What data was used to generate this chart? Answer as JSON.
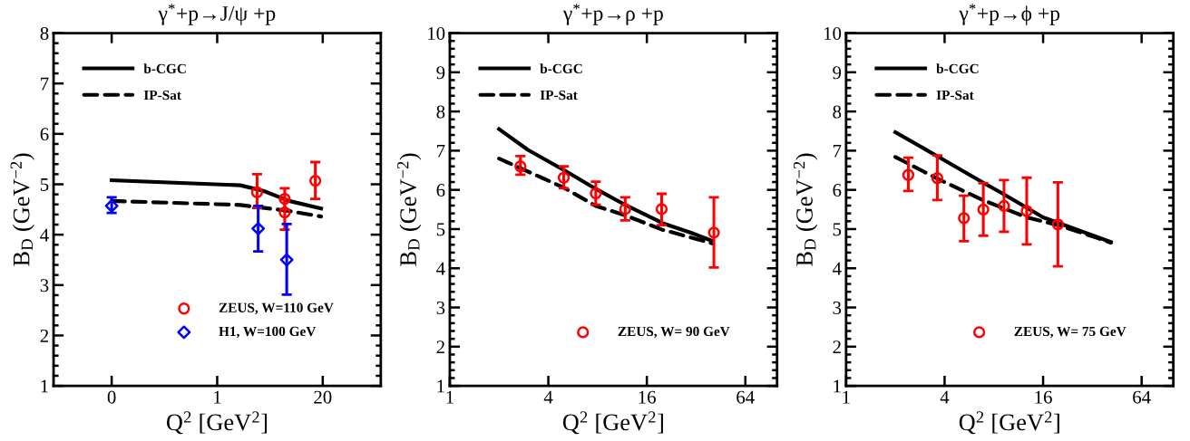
{
  "chart_data": [
    {
      "type": "line",
      "title": "γ$^{*}$+p→J/ψ +p",
      "xlabel": "Q$^{2}$ [GeV$^{2}$]",
      "ylabel": "B$_{D}$ (GeV$^{−2}$)",
      "log": "x",
      "xlim": [
        0.0096,
        104
      ],
      "xticks": [
        {
          "value": 0.05,
          "label": "0"
        },
        1,
        20
      ],
      "ylim": [
        1,
        8
      ],
      "yticks": [
        1,
        2,
        3,
        4,
        5,
        6,
        7,
        8
      ],
      "legend": "top left",
      "grid": false,
      "series": [
        {
          "name": "b-CGC",
          "color": "#000000",
          "line_style": "solid",
          "x": [
            0.05,
            1.93,
            3.7,
            7.7,
            19.1
          ],
          "values": [
            5.08,
            4.98,
            4.87,
            4.67,
            4.52
          ]
        },
        {
          "name": "IP-Sat",
          "color": "#000000",
          "line_style": "dashed",
          "x": [
            0.05,
            1.93,
            7.7,
            19.1
          ],
          "values": [
            4.67,
            4.59,
            4.47,
            4.36
          ]
        },
        {
          "name": "ZEUS, W=110 GeV",
          "type": "scatter",
          "marker": "circle",
          "color": "#ff0000",
          "x": [
            3.1,
            6.8,
            6.8,
            16.2
          ],
          "values": [
            4.84,
            4.71,
            4.44,
            5.07
          ],
          "errors": [
            [
              4.53,
              5.2
            ],
            [
              4.5,
              4.92
            ],
            [
              4.1,
              4.7
            ],
            [
              4.71,
              5.44
            ]
          ]
        },
        {
          "name": "H1, W=100 GeV",
          "type": "scatter",
          "marker": "diamond",
          "color": "#0000ff",
          "x": [
            0.05,
            3.2,
            7.2
          ],
          "values": [
            4.57,
            4.12,
            3.5
          ],
          "errors": [
            [
              4.43,
              4.74
            ],
            [
              3.67,
              4.57
            ],
            [
              2.81,
              4.21
            ]
          ]
        }
      ]
    },
    {
      "type": "line",
      "title": "γ$^{*}$+p→ρ +p",
      "xlabel": "Q$^{2}$ [GeV$^{2}$]",
      "ylabel": "B$_{D}$ (GeV$^{−2}$)",
      "log": "x",
      "xlim": [
        1,
        100
      ],
      "xticks": [
        1,
        4,
        16,
        64
      ],
      "ylim": [
        1,
        10
      ],
      "yticks": [
        1,
        2,
        3,
        4,
        5,
        6,
        7,
        8,
        9,
        10
      ],
      "legend": "top left",
      "grid": false,
      "series": [
        {
          "name": "b-CGC",
          "color": "#000000",
          "line_style": "solid",
          "x": [
            2.0,
            3.0,
            5.0,
            8.0,
            12,
            20,
            30,
            40
          ],
          "values": [
            7.55,
            7.02,
            6.5,
            6.0,
            5.6,
            5.15,
            4.9,
            4.7
          ]
        },
        {
          "name": "IP-Sat",
          "color": "#000000",
          "line_style": "dashed",
          "x": [
            2.0,
            5.0,
            7.8,
            12,
            19.7,
            40.5
          ],
          "values": [
            6.8,
            6.05,
            5.59,
            5.34,
            4.99,
            4.63
          ]
        },
        {
          "name": "ZEUS, W= 90 GeV",
          "type": "scatter",
          "marker": "circle",
          "color": "#ff0000",
          "x": [
            2.7,
            4.97,
            7.8,
            11.8,
            19.7,
            41.1
          ],
          "values": [
            6.6,
            6.31,
            5.91,
            5.51,
            5.51,
            4.91
          ],
          "errors": [
            [
              6.39,
              6.86
            ],
            [
              6.04,
              6.6
            ],
            [
              5.62,
              6.21
            ],
            [
              5.22,
              5.81
            ],
            [
              5.1,
              5.9
            ],
            [
              4.02,
              5.81
            ]
          ]
        }
      ]
    },
    {
      "type": "line",
      "title": "γ$^{*}$+p→ϕ +p",
      "xlabel": "Q$^{2}$ [GeV$^{2}$]",
      "ylabel": "B$_{D}$ (GeV$^{−2}$)",
      "log": "x",
      "xlim": [
        1,
        100
      ],
      "xticks": [
        1,
        4,
        16,
        64
      ],
      "ylim": [
        1,
        10
      ],
      "yticks": [
        1,
        2,
        3,
        4,
        5,
        6,
        7,
        8,
        9,
        10
      ],
      "legend": "top left",
      "grid": false,
      "series": [
        {
          "name": "b-CGC",
          "color": "#000000",
          "line_style": "solid",
          "x": [
            2.0,
            3.61,
            6.85,
            9.2,
            16,
            41.5
          ],
          "values": [
            7.47,
            6.86,
            6.19,
            5.89,
            5.3,
            4.67
          ]
        },
        {
          "name": "IP-Sat",
          "color": "#000000",
          "line_style": "dashed",
          "x": [
            2.0,
            3.6,
            6.85,
            12.7,
            19.7,
            33.4,
            41.5
          ],
          "values": [
            6.84,
            6.29,
            5.74,
            5.3,
            5.1,
            4.79,
            4.65
          ]
        },
        {
          "name": "ZEUS, W= 75 GeV",
          "type": "scatter",
          "marker": "circle",
          "color": "#ff0000",
          "x": [
            2.4,
            3.61,
            5.25,
            6.9,
            9.23,
            12.7,
            19.7
          ],
          "values": [
            6.38,
            6.3,
            5.28,
            5.5,
            5.59,
            5.46,
            5.12
          ],
          "errors": [
            [
              5.97,
              6.82
            ],
            [
              5.74,
              6.88
            ],
            [
              4.69,
              5.85
            ],
            [
              4.83,
              6.17
            ],
            [
              4.93,
              6.25
            ],
            [
              4.61,
              6.31
            ],
            [
              4.05,
              6.19
            ]
          ]
        }
      ]
    }
  ]
}
